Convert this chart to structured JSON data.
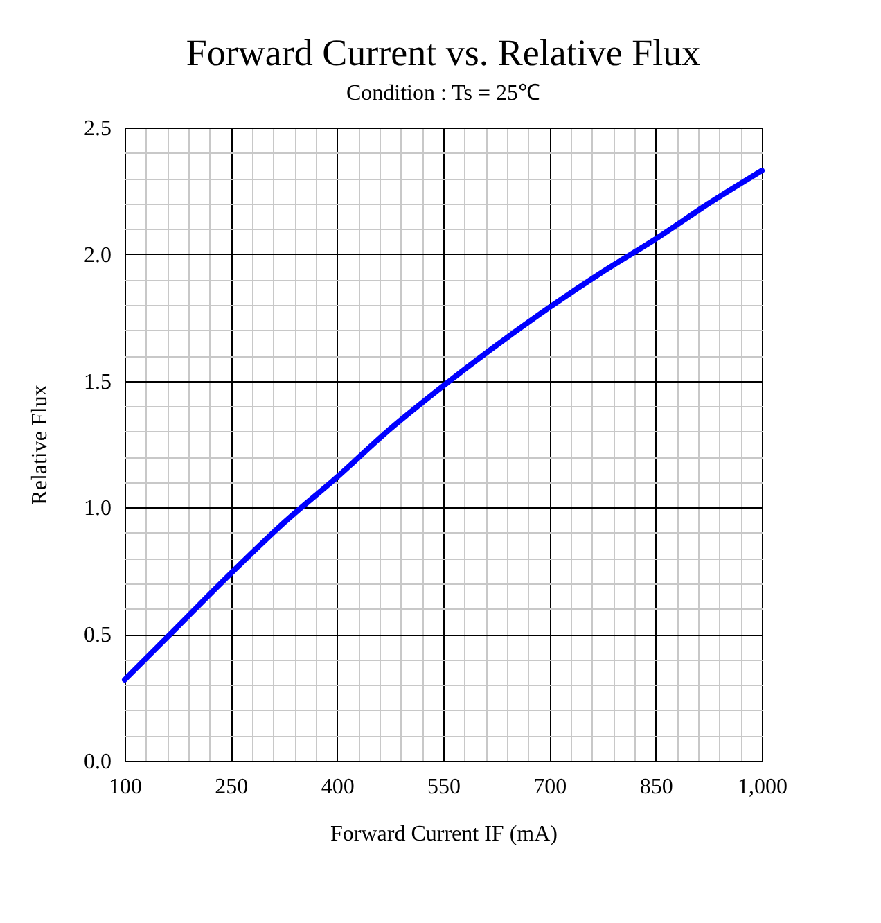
{
  "chart_data": {
    "type": "line",
    "title": "Forward Current vs. Relative Flux",
    "subtitle": "Condition : Ts = 25℃",
    "xlabel": "Forward Current IF (mA)",
    "ylabel": "Relative Flux",
    "x": [
      100,
      175,
      250,
      325,
      400,
      475,
      550,
      625,
      700,
      775,
      850,
      925,
      1000
    ],
    "series": [
      {
        "color": "#0000ff",
        "values": [
          0.32,
          0.53,
          0.74,
          0.94,
          1.12,
          1.31,
          1.48,
          1.64,
          1.79,
          1.93,
          2.06,
          2.2,
          2.33
        ]
      }
    ],
    "xlim": [
      100,
      1000
    ],
    "ylim": [
      0,
      2.5
    ],
    "xticks": [
      100,
      {
        "value": 130,
        "label": null
      },
      {
        "value": 160,
        "label": null
      },
      {
        "value": 190,
        "label": null
      },
      {
        "value": 220,
        "label": null
      },
      250,
      {
        "value": 280,
        "label": null
      },
      {
        "value": 310,
        "label": null
      },
      {
        "value": 340,
        "label": null
      },
      {
        "value": 370,
        "label": null
      },
      400,
      {
        "value": 430,
        "label": null
      },
      {
        "value": 460,
        "label": null
      },
      {
        "value": 490,
        "label": null
      },
      {
        "value": 520,
        "label": null
      },
      550,
      {
        "value": 580,
        "label": null
      },
      {
        "value": 610,
        "label": null
      },
      {
        "value": 640,
        "label": null
      },
      {
        "value": 670,
        "label": null
      },
      700,
      {
        "value": 730,
        "label": null
      },
      {
        "value": 760,
        "label": null
      },
      {
        "value": 790,
        "label": null
      },
      {
        "value": 820,
        "label": null
      },
      850,
      {
        "value": 880,
        "label": null
      },
      {
        "value": 910,
        "label": null
      },
      {
        "value": 940,
        "label": null
      },
      {
        "value": 970,
        "label": null
      },
      {
        "value": 1000,
        "label": "1,000"
      }
    ],
    "yticks": [
      {
        "value": 0,
        "label": "0.0"
      },
      {
        "value": 0.1,
        "label": null
      },
      {
        "value": 0.2,
        "label": null
      },
      {
        "value": 0.3,
        "label": null
      },
      {
        "value": 0.4,
        "label": null
      },
      0.5,
      {
        "value": 0.6,
        "label": null
      },
      {
        "value": 0.7,
        "label": null
      },
      {
        "value": 0.8,
        "label": null
      },
      {
        "value": 0.9,
        "label": null
      },
      {
        "value": 1,
        "label": "1.0"
      },
      {
        "value": 1.1,
        "label": null
      },
      {
        "value": 1.2,
        "label": null
      },
      {
        "value": 1.3,
        "label": null
      },
      {
        "value": 1.4,
        "label": null
      },
      1.5,
      {
        "value": 1.6,
        "label": null
      },
      {
        "value": 1.7,
        "label": null
      },
      {
        "value": 1.8,
        "label": null
      },
      {
        "value": 1.9,
        "label": null
      },
      {
        "value": 2,
        "label": "2.0"
      },
      {
        "value": 2.1,
        "label": null
      },
      {
        "value": 2.2,
        "label": null
      },
      {
        "value": 2.3,
        "label": null
      },
      {
        "value": 2.4,
        "label": null
      },
      2.5
    ],
    "grid": true,
    "legend": false,
    "marker": "none",
    "line_style": "solid"
  }
}
